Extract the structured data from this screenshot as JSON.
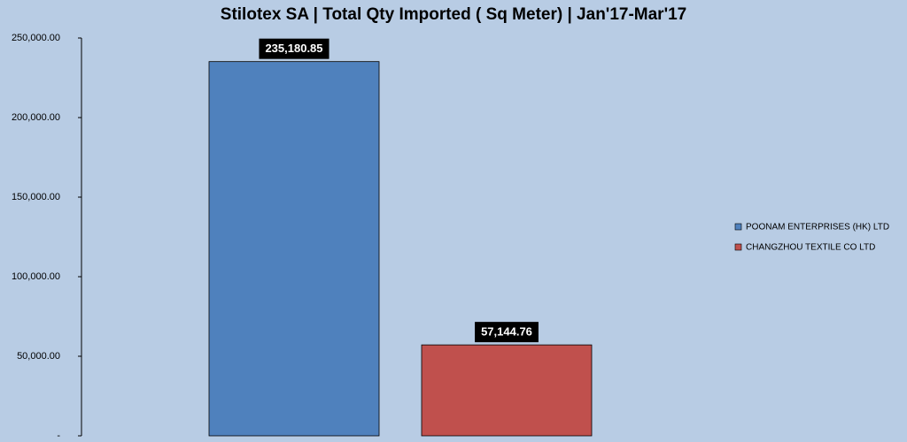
{
  "chart_data": {
    "type": "bar",
    "title": "Stilotex SA | Total Qty Imported ( Sq Meter) | Jan'17-Mar'17",
    "categories": [
      null
    ],
    "series": [
      {
        "name": "POONAM ENTERPRISES  (HK) LTD",
        "color": "#4f81bd",
        "values": [
          235180.85
        ],
        "value_labels": [
          "235,180.85"
        ]
      },
      {
        "name": "CHANGZHOU TEXTILE CO LTD",
        "color": "#c0504d",
        "values": [
          57144.76
        ],
        "value_labels": [
          "57,144.76"
        ]
      }
    ],
    "ylim": [
      0,
      250000
    ],
    "yticks": [
      {
        "value": 0,
        "label": "-"
      },
      {
        "value": 50000,
        "label": "50,000.00"
      },
      {
        "value": 100000,
        "label": "100,000.00"
      },
      {
        "value": 150000,
        "label": "150,000.00"
      },
      {
        "value": 200000,
        "label": "200,000.00"
      },
      {
        "value": 250000,
        "label": "250,000.00"
      }
    ],
    "grid": false,
    "legend": "right"
  }
}
